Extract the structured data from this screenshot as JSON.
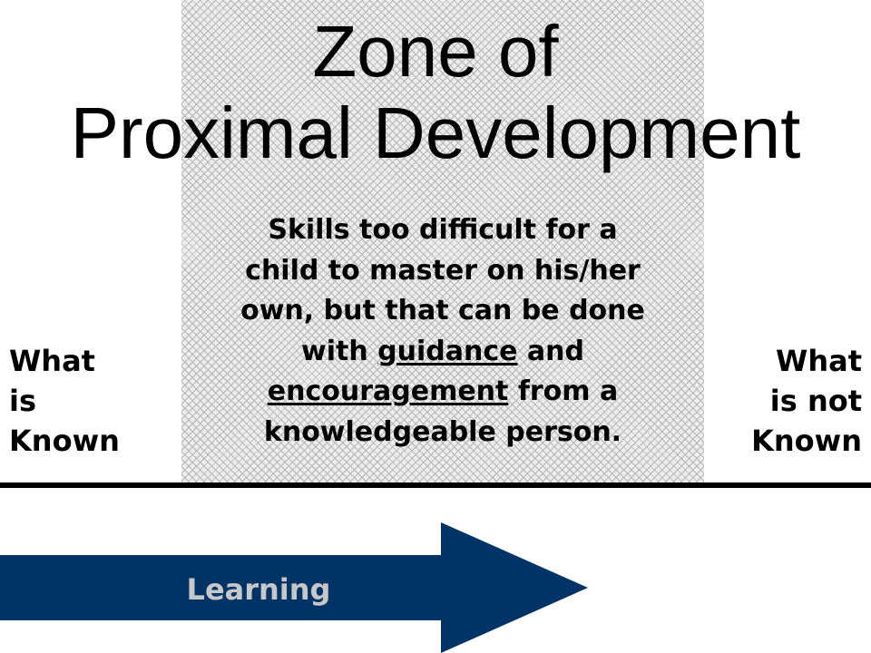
{
  "title": {
    "line1": "Zone of",
    "line2": "Proximal Development"
  },
  "description": {
    "line1": "Skills too difficult for a",
    "line2": "child to master on his/her",
    "line3": "own, but that can be done",
    "line4_prefix": "with ",
    "line4_underlined": "guidance",
    "line4_suffix": " and",
    "line5_underlined": "encouragement",
    "line5_suffix": " from a",
    "line6": "knowledgeable person."
  },
  "left_label": {
    "line1": "What",
    "line2": "is",
    "line3": "Known"
  },
  "right_label": {
    "line1": "What",
    "line2": "is not",
    "line3": "Known"
  },
  "arrow": {
    "label": "Learning",
    "fill_color": "#003366",
    "label_color": "#c7c7c7"
  },
  "colors": {
    "zone_pattern": "#b4b4b4",
    "divider": "#000000"
  }
}
